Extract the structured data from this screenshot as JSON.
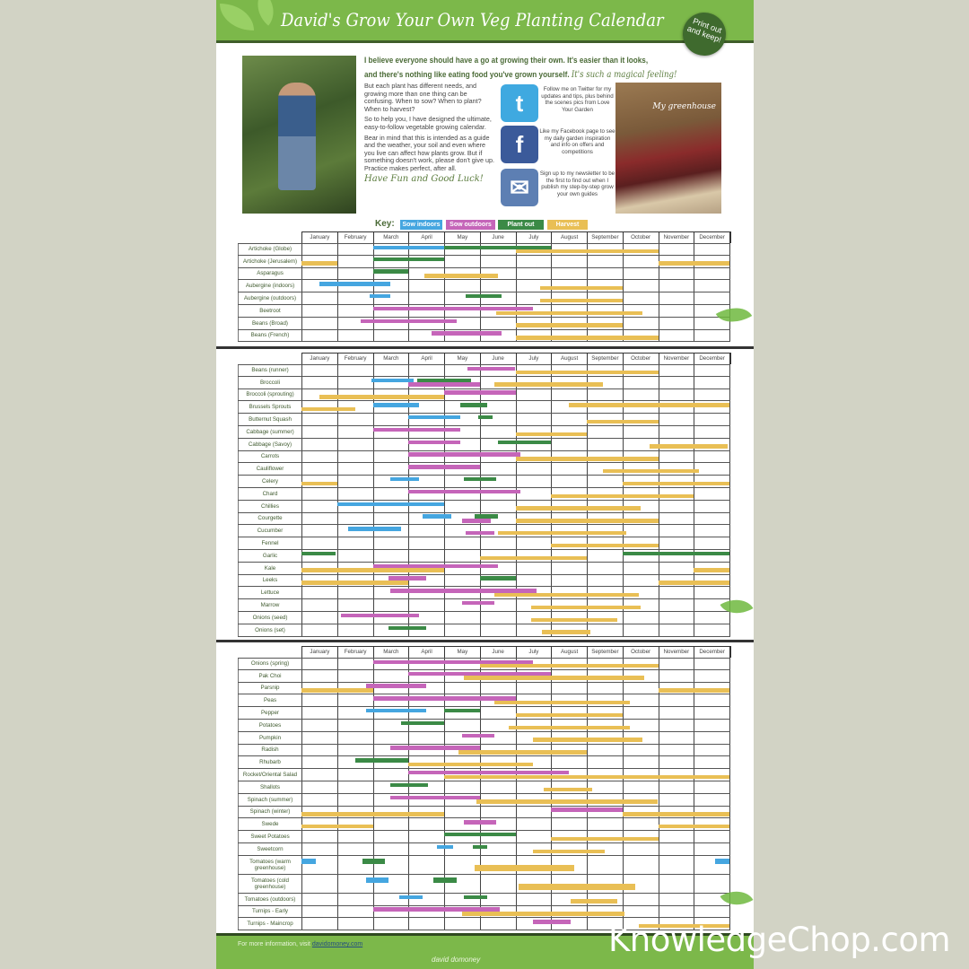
{
  "header": {
    "title": "David's Grow Your Own Veg Planting Calendar",
    "badge": "Print out and keep!"
  },
  "intro": {
    "headline_1": "I believe everyone should have a go at growing their own. It's easier than it looks,",
    "headline_2": "and there's nothing like eating food you've grown yourself.",
    "headline_script": "It's such a magical feeling!",
    "para_1": "But each plant has different needs, and growing more than one thing can be confusing. When to sow? When to plant? When to harvest?",
    "para_2": "So to help you, I have designed the ultimate, easy-to-follow vegetable growing calendar.",
    "para_3": "Bear in mind that this is intended as a guide and the weather, your soil and even where you live can affect how plants grow. But if something doesn't work, please don't give up. Practice makes perfect, after all.",
    "signoff": "Have Fun and Good Luck!",
    "greenhouse_caption": "My greenhouse"
  },
  "social": [
    {
      "icon": "twitter-icon",
      "glyph": "t",
      "color": "#3fa9e0",
      "text": "Follow me on Twitter for my updates and tips, plus behind the scenes pics from Love Your Garden"
    },
    {
      "icon": "facebook-icon",
      "glyph": "f",
      "color": "#3b5a9a",
      "text": "Like my Facebook page to see my daily garden inspiration and info on offers and competitions"
    },
    {
      "icon": "envelope-icon",
      "glyph": "✉",
      "color": "#5d7fb3",
      "text": "Sign up to my newsletter to be the first to find out when I publish my step-by-step grow your own guides"
    }
  ],
  "key": {
    "label": "Key:",
    "items": [
      {
        "id": "si",
        "label": "Sow indoors",
        "color": "#45a6e0"
      },
      {
        "id": "so",
        "label": "Sow outdoors",
        "color": "#c565b9"
      },
      {
        "id": "po",
        "label": "Plant out",
        "color": "#3b8a46"
      },
      {
        "id": "h",
        "label": "Harvest",
        "color": "#e9bf55"
      }
    ]
  },
  "months": [
    "January",
    "February",
    "March",
    "April",
    "May",
    "June",
    "July",
    "August",
    "September",
    "October",
    "November",
    "December"
  ],
  "tables": [
    {
      "crops": [
        {
          "name": "Artichoke (Globe)",
          "bars": [
            [
              "si",
              2,
              4,
              0
            ],
            [
              "po",
              4,
              7,
              0
            ],
            [
              "h",
              6,
              10,
              1
            ]
          ]
        },
        {
          "name": "Artichoke (Jerusalem)",
          "bars": [
            [
              "h",
              0,
              1,
              1
            ],
            [
              "po",
              2,
              4,
              0
            ],
            [
              "h",
              10,
              12,
              1
            ]
          ]
        },
        {
          "name": "Asparagus",
          "bars": [
            [
              "po",
              2,
              3,
              0
            ],
            [
              "h",
              3.45,
              5.5,
              1
            ]
          ]
        },
        {
          "name": "Aubergine (indoors)",
          "bars": [
            [
              "si",
              0.5,
              2.5,
              0
            ],
            [
              "h",
              6.7,
              9,
              1
            ]
          ]
        },
        {
          "name": "Aubergine (outdoors)",
          "bars": [
            [
              "si",
              1.9,
              2.5,
              0
            ],
            [
              "po",
              4.6,
              5.6,
              0
            ],
            [
              "h",
              6.7,
              9,
              1
            ]
          ]
        },
        {
          "name": "Beetroot",
          "bars": [
            [
              "so",
              2,
              6.5,
              0
            ],
            [
              "h",
              5.45,
              9.55,
              1
            ]
          ]
        },
        {
          "name": "Beans (Broad)",
          "bars": [
            [
              "so",
              1.65,
              4.35,
              0
            ],
            [
              "h",
              6,
              9,
              1
            ]
          ]
        },
        {
          "name": "Beans (French)",
          "bars": [
            [
              "so",
              3.65,
              5.6,
              0
            ],
            [
              "h",
              6,
              10,
              1
            ]
          ]
        }
      ]
    },
    {
      "crops": [
        {
          "name": "Beans (runner)",
          "bars": [
            [
              "so",
              4.65,
              6,
              0
            ],
            [
              "h",
              6,
              10,
              1
            ]
          ]
        },
        {
          "name": "Broccoli",
          "bars": [
            [
              "si",
              1.95,
              3.15,
              0
            ],
            [
              "po",
              3.25,
              4.75,
              0
            ],
            [
              "so",
              3,
              5,
              1
            ],
            [
              "h",
              5.4,
              8.45,
              1
            ]
          ]
        },
        {
          "name": "Broccoli (sprouting)",
          "bars": [
            [
              "h",
              0.5,
              4,
              1
            ],
            [
              "so",
              4,
              6,
              0
            ]
          ]
        },
        {
          "name": "Brussels Sprouts",
          "bars": [
            [
              "h",
              0,
              1.5,
              1
            ],
            [
              "si",
              2,
              3.3,
              0
            ],
            [
              "po",
              4.45,
              5.2,
              0
            ],
            [
              "h",
              7.5,
              12,
              0
            ]
          ]
        },
        {
          "name": "Butternut Squash",
          "bars": [
            [
              "si",
              3,
              4.45,
              0
            ],
            [
              "po",
              4.95,
              5.35,
              0
            ],
            [
              "h",
              8,
              10,
              1
            ]
          ]
        },
        {
          "name": "Cabbage (summer)",
          "bars": [
            [
              "so",
              2,
              4.45,
              0
            ],
            [
              "h",
              6,
              8,
              1
            ]
          ]
        },
        {
          "name": "Cabbage (Savoy)",
          "bars": [
            [
              "so",
              3,
              4.45,
              0
            ],
            [
              "po",
              5.5,
              7,
              0
            ],
            [
              "h",
              9.75,
              11.95,
              1
            ]
          ]
        },
        {
          "name": "Carrots",
          "bars": [
            [
              "so",
              3,
              6.15,
              0
            ],
            [
              "h",
              6,
              10,
              1
            ]
          ]
        },
        {
          "name": "Cauliflower",
          "bars": [
            [
              "so",
              3,
              5,
              0
            ],
            [
              "h",
              8.45,
              11.15,
              1
            ]
          ]
        },
        {
          "name": "Celery",
          "bars": [
            [
              "h",
              0,
              1,
              1
            ],
            [
              "si",
              2.5,
              3.3,
              0
            ],
            [
              "po",
              4.55,
              5.45,
              0
            ],
            [
              "h",
              9,
              12,
              1
            ]
          ]
        },
        {
          "name": "Chard",
          "bars": [
            [
              "so",
              3,
              6.15,
              0
            ],
            [
              "h",
              7,
              11,
              1
            ]
          ]
        },
        {
          "name": "Chillies",
          "bars": [
            [
              "si",
              1,
              4,
              0
            ],
            [
              "h",
              6,
              9.5,
              1
            ]
          ]
        },
        {
          "name": "Courgette",
          "bars": [
            [
              "si",
              3.4,
              4.2,
              0
            ],
            [
              "po",
              4.85,
              5.5,
              0
            ],
            [
              "so",
              4.5,
              5.3,
              1
            ],
            [
              "h",
              6,
              10,
              1
            ]
          ]
        },
        {
          "name": "Cucumber",
          "bars": [
            [
              "si",
              1.3,
              2.8,
              0
            ],
            [
              "so",
              4.6,
              5.4,
              1
            ],
            [
              "h",
              5.5,
              9.1,
              1
            ]
          ]
        },
        {
          "name": "Fennel",
          "bars": [
            [
              "h",
              7,
              10,
              1
            ]
          ]
        },
        {
          "name": "Garlic",
          "bars": [
            [
              "po",
              0,
              0.95,
              0
            ],
            [
              "po",
              9,
              12,
              0
            ],
            [
              "h",
              5,
              8,
              1
            ]
          ]
        },
        {
          "name": "Kale",
          "bars": [
            [
              "so",
              2,
              5.5,
              0
            ],
            [
              "h",
              0,
              4,
              1
            ],
            [
              "h",
              11,
              12,
              1
            ]
          ]
        },
        {
          "name": "Leeks",
          "bars": [
            [
              "so",
              2.45,
              3.5,
              0
            ],
            [
              "po",
              5,
              6,
              0
            ],
            [
              "h",
              0,
              3,
              1
            ],
            [
              "h",
              10,
              12,
              1
            ]
          ]
        },
        {
          "name": "Lettuce",
          "bars": [
            [
              "so",
              2.5,
              6.6,
              0
            ],
            [
              "h",
              5.4,
              9.45,
              1
            ]
          ]
        },
        {
          "name": "Marrow",
          "bars": [
            [
              "so",
              4.5,
              5.4,
              0
            ],
            [
              "h",
              6.45,
              9.5,
              1
            ]
          ]
        },
        {
          "name": "Onions (seed)",
          "bars": [
            [
              "so",
              1.1,
              3.3,
              0
            ],
            [
              "h",
              6.45,
              8.85,
              1
            ]
          ]
        },
        {
          "name": "Onions (set)",
          "bars": [
            [
              "po",
              2.45,
              3.5,
              0
            ],
            [
              "h",
              6.75,
              8.1,
              1
            ]
          ]
        }
      ]
    },
    {
      "crops": [
        {
          "name": "Onions (spring)",
          "bars": [
            [
              "so",
              2,
              6.5,
              0
            ],
            [
              "h",
              5,
              10,
              1
            ]
          ]
        },
        {
          "name": "Pak Choi",
          "bars": [
            [
              "so",
              3,
              7,
              0
            ],
            [
              "h",
              4.55,
              9.6,
              1
            ]
          ]
        },
        {
          "name": "Parsnip",
          "bars": [
            [
              "so",
              1.8,
              3.5,
              0
            ],
            [
              "h",
              0,
              2,
              1
            ],
            [
              "h",
              10,
              12,
              1
            ]
          ]
        },
        {
          "name": "Peas",
          "bars": [
            [
              "so",
              2,
              6,
              0
            ],
            [
              "h",
              5.4,
              9.2,
              1
            ]
          ]
        },
        {
          "name": "Pepper",
          "bars": [
            [
              "si",
              1.8,
              3.5,
              0
            ],
            [
              "po",
              4,
              5,
              0
            ],
            [
              "h",
              6,
              9,
              1
            ]
          ]
        },
        {
          "name": "Potatoes",
          "bars": [
            [
              "po",
              2.8,
              4,
              0
            ],
            [
              "h",
              5.8,
              9.2,
              1
            ]
          ]
        },
        {
          "name": "Pumpkin",
          "bars": [
            [
              "so",
              4.5,
              5.4,
              0
            ],
            [
              "h",
              6.5,
              9.55,
              1
            ]
          ]
        },
        {
          "name": "Radish",
          "bars": [
            [
              "so",
              2.5,
              5,
              0
            ],
            [
              "h",
              4.4,
              8,
              1
            ]
          ]
        },
        {
          "name": "Rhubarb",
          "bars": [
            [
              "po",
              1.5,
              3,
              0
            ],
            [
              "h",
              3,
              6.5,
              1
            ]
          ]
        },
        {
          "name": "Rocket/Oriental Salad",
          "bars": [
            [
              "so",
              3,
              7.5,
              0
            ],
            [
              "h",
              4,
              12,
              1
            ]
          ]
        },
        {
          "name": "Shallots",
          "bars": [
            [
              "po",
              2.5,
              3.55,
              0
            ],
            [
              "h",
              6.8,
              8.15,
              1
            ]
          ]
        },
        {
          "name": "Spinach (summer)",
          "bars": [
            [
              "so",
              2.5,
              5,
              0
            ],
            [
              "h",
              4.9,
              10,
              1
            ]
          ]
        },
        {
          "name": "Spinach (winter)",
          "bars": [
            [
              "h",
              0,
              4,
              1
            ],
            [
              "so",
              7,
              9,
              0
            ],
            [
              "h",
              9,
              12,
              1
            ]
          ]
        },
        {
          "name": "Swede",
          "bars": [
            [
              "h",
              0,
              2,
              1
            ],
            [
              "so",
              4.55,
              5.45,
              0
            ],
            [
              "h",
              10,
              12,
              1
            ]
          ]
        },
        {
          "name": "Sweet Potatoes",
          "bars": [
            [
              "po",
              4,
              6,
              0
            ],
            [
              "h",
              7,
              10,
              1
            ]
          ]
        },
        {
          "name": "Sweetcorn",
          "bars": [
            [
              "si",
              3.8,
              4.25,
              0
            ],
            [
              "po",
              4.8,
              5.2,
              0
            ],
            [
              "h",
              6.5,
              8.5,
              1
            ]
          ]
        },
        {
          "name": "Tomatoes (warm greenhouse)",
          "tall": true,
          "bars": [
            [
              "si",
              0,
              0.4,
              0
            ],
            [
              "po",
              1.7,
              2.35,
              0
            ],
            [
              "h",
              4.85,
              7.65,
              1
            ],
            [
              "si",
              11.6,
              12,
              0
            ]
          ]
        },
        {
          "name": "Tomatoes (cold greenhouse)",
          "tall": true,
          "bars": [
            [
              "si",
              1.8,
              2.45,
              0
            ],
            [
              "po",
              3.7,
              4.35,
              0
            ],
            [
              "h",
              6.1,
              9.35,
              1
            ]
          ]
        },
        {
          "name": "Tomatoes (outdoors)",
          "bars": [
            [
              "si",
              2.75,
              3.4,
              0
            ],
            [
              "po",
              4.55,
              5.2,
              0
            ],
            [
              "h",
              7.55,
              8.85,
              1
            ]
          ]
        },
        {
          "name": "Turnips - Early",
          "bars": [
            [
              "so",
              2,
              5.55,
              0
            ],
            [
              "h",
              4.5,
              9.05,
              1
            ]
          ]
        },
        {
          "name": "Turnips - Maincrop",
          "bars": [
            [
              "so",
              6.5,
              7.55,
              0
            ],
            [
              "h",
              9.45,
              12,
              1
            ]
          ]
        }
      ]
    }
  ],
  "footer": {
    "text": "For more information, visit",
    "link": "davidomoney.com",
    "logo": "david domoney"
  },
  "watermark": "KnowledgeChop.com"
}
